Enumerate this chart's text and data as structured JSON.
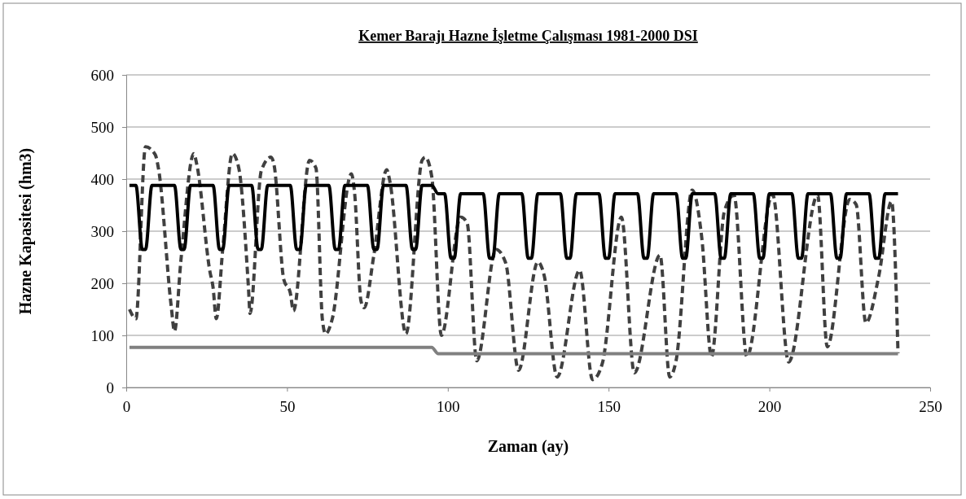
{
  "chart_data": {
    "type": "line",
    "title": "Kemer  Barajı Hazne İşletme Çalışması 1981-2000 DSI",
    "xlabel": "Zaman (ay)",
    "ylabel": "Hazne Kapasitesi (hm3)",
    "xlim": [
      0,
      250
    ],
    "xticks": [
      0,
      50,
      100,
      150,
      200,
      250
    ],
    "ylim": [
      0,
      600
    ],
    "yticks": [
      0,
      100,
      200,
      300,
      400,
      500,
      600
    ],
    "grid": "y",
    "marker": "none",
    "series": [
      {
        "color": "#404040",
        "line_style": "dashed",
        "x": [
          1,
          3,
          6,
          9,
          10,
          14,
          15,
          17,
          21,
          22,
          26,
          27,
          28,
          30,
          33,
          35,
          38,
          38.5,
          42,
          45,
          46,
          49,
          51,
          52,
          57,
          59,
          61,
          62,
          64,
          70,
          71,
          73,
          74,
          77,
          81,
          82,
          87,
          92,
          93,
          95,
          98,
          104,
          106,
          109,
          115,
          118,
          122,
          128,
          130,
          134,
          141,
          145,
          148,
          154,
          158,
          166,
          169,
          171,
          176,
          179,
          182,
          186,
          189,
          193,
          201,
          206,
          215,
          218,
          225,
          227,
          230,
          234,
          238,
          240
        ],
        "values": [
          150,
          132,
          462,
          447,
          421,
          155,
          108,
          244,
          449,
          426,
          223,
          192,
          132,
          265,
          449,
          421,
          192,
          142,
          416,
          442,
          426,
          207,
          182,
          147,
          436,
          421,
          130,
          103,
          130,
          410,
          374,
          166,
          153,
          254,
          418,
          395,
          103,
          436,
          442,
          405,
          100,
          327,
          316,
          51,
          265,
          239,
          33,
          241,
          214,
          20,
          225,
          15,
          45,
          327,
          28,
          254,
          20,
          52,
          379,
          286,
          59,
          338,
          369,
          59,
          371,
          49,
          369,
          78,
          361,
          351,
          124,
          213,
          357,
          66
        ]
      },
      {
        "color": "#000000",
        "line_style": "solid",
        "x": [
          1,
          3,
          5,
          6,
          8,
          15,
          17,
          18,
          20,
          27,
          29,
          30,
          32,
          39,
          41,
          42,
          44,
          51,
          53,
          54,
          56,
          63,
          65,
          66,
          68,
          75,
          77,
          78,
          80,
          87,
          89,
          90,
          92,
          95,
          97,
          99,
          101,
          102,
          104,
          111,
          113,
          114,
          116,
          123,
          125,
          126,
          128,
          135,
          137,
          138,
          140,
          147,
          149,
          150,
          152,
          159,
          161,
          162,
          164,
          171,
          173,
          174,
          176,
          183,
          185,
          186,
          188,
          195,
          197,
          198,
          200,
          207,
          209,
          210,
          212,
          219,
          221,
          222,
          224,
          231,
          233,
          234,
          236,
          240
        ],
        "values": [
          388,
          388,
          265,
          265,
          388,
          388,
          265,
          265,
          388,
          388,
          265,
          265,
          388,
          388,
          265,
          265,
          388,
          388,
          265,
          265,
          388,
          388,
          265,
          265,
          388,
          388,
          265,
          265,
          388,
          388,
          265,
          265,
          388,
          388,
          372,
          372,
          248,
          248,
          372,
          372,
          248,
          248,
          372,
          372,
          248,
          248,
          372,
          372,
          248,
          248,
          372,
          372,
          248,
          248,
          372,
          372,
          248,
          248,
          372,
          372,
          248,
          248,
          372,
          372,
          248,
          248,
          372,
          372,
          248,
          248,
          372,
          372,
          248,
          248,
          372,
          372,
          248,
          248,
          372,
          372,
          248,
          248,
          372,
          372
        ]
      },
      {
        "color": "#808080",
        "line_style": "solid",
        "x": [
          1,
          95,
          97,
          240
        ],
        "values": [
          77,
          77,
          65,
          65
        ]
      }
    ]
  }
}
